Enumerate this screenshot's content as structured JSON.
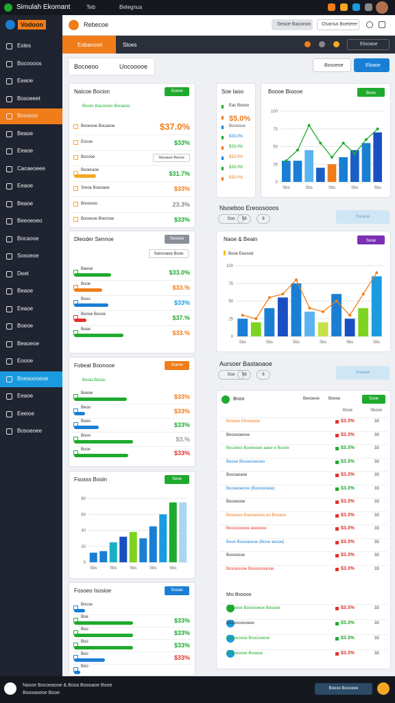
{
  "window": {
    "title": "Simulah Ekomant",
    "tabs": [
      "Teb",
      "Belegnus"
    ]
  },
  "brand": "Vodoon",
  "header": {
    "title": "Rebecoe",
    "search": "Sesoe Baconon",
    "search2": "Osansa Boeteee"
  },
  "sidebar": {
    "items": [
      "Estes",
      "Bocoooos",
      "Eeaoe",
      "Bosoeeet",
      "Brooeoo",
      "Beaoe",
      "Eeaoe",
      "Cacaeoeee",
      "Eeaoe",
      "Beaoe",
      "Beeoeoeo",
      "Bocaooe",
      "Sosoeoe",
      "Deet",
      "Beaoe",
      "Eeaoe",
      "Boeoe",
      "Beaoeoe",
      "Eoooe",
      "Boeaoooeoe",
      "Eeaoe",
      "Eeeioe",
      "Bosoeoee"
    ],
    "active_orange": 4,
    "active_blue": 19
  },
  "subnav": {
    "tabs": [
      "Eobanoon",
      "Stoes"
    ],
    "button": "Elooaoe"
  },
  "toolbar": {
    "tabs": [
      "Bocoeoo",
      "Uocooooe"
    ],
    "buttons": [
      "Bosoeoe",
      "Eloaoe"
    ]
  },
  "cards": [
    {
      "title": "Natcoe Bocion",
      "badge": {
        "text": "Soeoe",
        "color": "#1faa2e"
      },
      "subtitle": "Bocec Bacocoes Bocaoes",
      "rows": [
        {
          "label": "Booeooe Bocaeoe",
          "value": "$37.0%",
          "color": "#f07c1a"
        },
        {
          "label": "Eocoe",
          "value": "$33%",
          "color": "#1faa2e"
        },
        {
          "label": "Bocooe",
          "button": "Stooaoe Bocoe"
        },
        {
          "label": "Booeraoe",
          "value": "$31.7%",
          "color": "#1faa2e",
          "progress": 35,
          "pcolor": "#f5a623"
        },
        {
          "label": "Sreoe Boooaoe",
          "value": "$33%",
          "color": "#f07c1a"
        },
        {
          "label": "Boooooo",
          "value": "23.3%",
          "color": "#888888"
        },
        {
          "label": "Boooooe Boorooe",
          "value": "$33%",
          "color": "#1faa2e"
        }
      ]
    },
    {
      "title": "Dleoder Sennoe",
      "badge": {
        "text": "Sesoee",
        "color": "#8a8f99"
      },
      "button": "Sanooaoe Booe",
      "rows": [
        {
          "label": "Baeoe",
          "value": "$33.0%",
          "color": "#1faa2e",
          "progress": 60,
          "pcolor": "#1faa2e"
        },
        {
          "label": "Booe",
          "value": "$33.%",
          "color": "#f07c1a",
          "progress": 45,
          "pcolor": "#f07c1a"
        },
        {
          "label": "Bsoo",
          "value": "$33%",
          "color": "#1a9be0",
          "progress": 55,
          "pcolor": "#1a7fd4"
        },
        {
          "label": "Boooe Bosoe",
          "value": "$37.%",
          "color": "#1faa2e",
          "progress": 20,
          "pcolor": "#e0342a"
        },
        {
          "label": "Boee",
          "value": "$33.%",
          "color": "#f07c1a",
          "progress": 80,
          "pcolor": "#1faa2e"
        }
      ]
    },
    {
      "title": "Fobeat Boonooe",
      "badge": {
        "text": "Soeoe",
        "color": "#f07c1a"
      },
      "subtitle": "Booia Bocac",
      "rows": [
        {
          "label": "Boeoe",
          "value": "$33%",
          "color": "#f07c1a",
          "progress": 85,
          "pcolor": "#1faa2e"
        },
        {
          "label": "Beoo",
          "value": "$33%",
          "color": "#f07c1a",
          "progress": 18,
          "pcolor": "#1a7fd4"
        },
        {
          "label": "Boeo",
          "value": "$33%",
          "color": "#1faa2e",
          "progress": 40,
          "pcolor": "#1a7fd4"
        },
        {
          "label": "Booo",
          "value": "$3.%",
          "color": "#999999",
          "progress": 95,
          "pcolor": "#1faa2e"
        },
        {
          "label": "Booe",
          "value": "$33%",
          "color": "#e0342a",
          "progress": 88,
          "pcolor": "#1faa2e"
        }
      ]
    },
    {
      "title": "Fsosss Booin",
      "badge": {
        "text": "Seoe",
        "color": "#1faa2e"
      },
      "chart": 2
    },
    {
      "title": "Fosoeo Isosioe",
      "badge": {
        "text": "Sooae",
        "color": "#1a7fd4"
      },
      "rows": [
        {
          "label": "Bocoe",
          "progress": 18,
          "pcolor": "#1a7fd4"
        },
        {
          "label": "Boe",
          "value": "$33%",
          "color": "#1faa2e",
          "progress": 95,
          "pcolor": "#1faa2e"
        },
        {
          "label": "Boo",
          "value": "$33%",
          "color": "#1faa2e",
          "progress": 95,
          "pcolor": "#1faa2e"
        },
        {
          "label": "Boo",
          "value": "$33%",
          "color": "#1faa2e",
          "progress": 95,
          "pcolor": "#1faa2e"
        },
        {
          "label": "Boo",
          "value": "$33%",
          "color": "#e0342a",
          "progress": 50,
          "pcolor": "#1a7fd4"
        },
        {
          "label": "Boo",
          "progress": 10,
          "pcolor": "#1a7fd4"
        }
      ]
    }
  ],
  "mini": {
    "title": "Soe Iaoo",
    "items": [
      {
        "text": "Eac Bsooo",
        "color": "#333333"
      },
      {
        "text": "$5.0%",
        "color": "#f07c1a"
      },
      {
        "text": "Boooooo",
        "color": "#555555"
      },
      {
        "text": "$33.0%",
        "color": "#1a7fd4"
      },
      {
        "text": "$33.0%",
        "color": "#1faa2e"
      },
      {
        "text": "$33.0%",
        "color": "#f07c1a"
      },
      {
        "text": "$33.0%",
        "color": "#1faa2e"
      },
      {
        "text": "$33.0%",
        "color": "#f07c1a"
      }
    ]
  },
  "sections": [
    {
      "title": "Nsoeboo Ereoosooos",
      "chips": [
        "Soo",
        "S8",
        "8"
      ],
      "button": "Socaoe"
    },
    {
      "title": "Aursoer Bastaoaoe",
      "chips": [
        "Soo",
        "S8",
        "8"
      ],
      "button": "Sooaoe"
    }
  ],
  "chart_data": [
    {
      "type": "bar",
      "title": "Boooe Bioooe",
      "badge": "Booe",
      "badge_color": "#1faa2e",
      "categories": [
        "Sbs",
        null,
        "Sbs",
        null,
        "Sbs",
        null,
        "Sbs",
        null,
        "Sbs"
      ],
      "values": [
        30,
        30,
        45,
        20,
        25,
        35,
        45,
        55,
        70
      ],
      "colors": [
        "#1a7fd4",
        "#1a7fd4",
        "#5ab4f0",
        "#1a5fc4",
        "#f07c1a",
        "#1a7fd4",
        "#1a5fc4",
        "#1a7fd4",
        "#1a4fc4"
      ],
      "line": [
        30,
        45,
        80,
        55,
        35,
        55,
        40,
        60,
        75
      ],
      "line_color": "#1faa2e",
      "ylim": [
        0,
        100
      ],
      "yticks": [
        0,
        25,
        50,
        75,
        100
      ]
    },
    {
      "type": "bar",
      "title": "Naoe & Beain",
      "badge": "Sooe",
      "badge_color": "#7b2fb5",
      "legend": "Booe Eeoood",
      "categories": [
        "Sbs",
        null,
        "Sbs",
        null,
        "Sbs",
        null,
        "Sbs",
        null,
        "Sbs",
        null,
        "Sbs"
      ],
      "values": [
        25,
        20,
        40,
        55,
        75,
        35,
        20,
        60,
        25,
        40,
        85
      ],
      "colors": [
        "#1a7fd4",
        "#7ed321",
        "#1a7fd4",
        "#1a4fc4",
        "#1a7fd4",
        "#5ab4f0",
        "#c8e04a",
        "#1a7fd4",
        "#1a4fc4",
        "#7ed321",
        "#1a9be0"
      ],
      "line": [
        30,
        25,
        55,
        60,
        80,
        40,
        35,
        50,
        30,
        60,
        90
      ],
      "line_color": "#f07c1a",
      "ylim": [
        0,
        100
      ],
      "yticks": [
        0,
        25,
        50,
        75,
        100
      ]
    },
    {
      "type": "bar",
      "categories": [
        "Sbs",
        null,
        "Sbs",
        null,
        "Sbs",
        null,
        "Sbs",
        null,
        "Sbs",
        null
      ],
      "values": [
        12,
        14,
        25,
        32,
        38,
        30,
        45,
        60,
        75,
        75
      ],
      "colors": [
        "#1a7fd4",
        "#1a7fd4",
        "#1ab0c4",
        "#1a4fc4",
        "#7ed321",
        "#1a7fd4",
        "#1a7fd4",
        "#1a9be0",
        "#1faa2e",
        "#a8d8f0"
      ],
      "ylim": [
        0,
        80
      ],
      "yticks": [
        0,
        20,
        40,
        60,
        80
      ]
    }
  ],
  "table": {
    "title": "Bnoo",
    "tabs": [
      "Beooeoe",
      "Boeoe"
    ],
    "button": "Sooe",
    "columns": [
      "Booe",
      "Sbooo"
    ],
    "rows": [
      {
        "label": "Bosoeo Eboooaoe",
        "color": "#f07c1a",
        "value": "$3.3%",
        "vcolor": "#e0342a",
        "n": "33"
      },
      {
        "label": "Boooooeooe",
        "color": "#333333",
        "value": "$3.3%",
        "vcolor": "#e0342a",
        "n": "33"
      },
      {
        "label": "Bocoeoo Booeoooe aaoe e Boooe",
        "color": "#1faa2e",
        "value": "$3.3%",
        "vcolor": "#1faa2e",
        "n": "33"
      },
      {
        "label": "Boooe Booooooooeo",
        "color": "#1a7fd4",
        "value": "$3.3%",
        "vcolor": "#1faa2e",
        "n": "33"
      },
      {
        "label": "Bsooaoaoe",
        "color": "#333333",
        "value": "$3.3%",
        "vcolor": "#e0342a",
        "n": "33"
      },
      {
        "label": "Boooeoeooe (Boooooaoe)",
        "color": "#1a7fd4",
        "value": "$3.3%",
        "vcolor": "#1faa2e",
        "n": "33"
      },
      {
        "label": "Boooeooe",
        "color": "#333333",
        "value": "$3.3%",
        "vcolor": "#e0342a",
        "n": "33"
      },
      {
        "label": "Booooeo Boooooeoo eo Booaoe",
        "color": "#f07c1a",
        "value": "$3.3%",
        "vcolor": "#e0342a",
        "n": "33"
      },
      {
        "label": "Bocoooeooe aoooeoe",
        "color": "#e0342a",
        "value": "$3.3%",
        "vcolor": "#e0342a",
        "n": "33"
      },
      {
        "label": "Booe Boooaoeoe (Booe aoooe)",
        "color": "#1a7fd4",
        "value": "$3.3%",
        "vcolor": "#e0342a",
        "n": "33"
      },
      {
        "label": "Bsoooooe",
        "color": "#333333",
        "value": "$3.3%",
        "vcolor": "#e0342a",
        "n": "33"
      },
      {
        "label": "Bosoeoooe Booooooaooe",
        "color": "#e0342a",
        "value": "$3.3%",
        "vcolor": "#e0342a",
        "n": "33"
      }
    ],
    "group": "Msi Bsoooo",
    "group_rows": [
      {
        "label": "Bosoeoe Boooooeoe Booaoe",
        "color": "#1faa2e",
        "value": "$3.3%",
        "vcolor": "#e0342a",
        "n": "33"
      },
      {
        "label": "Booooooooeoe",
        "color": "#333333",
        "value": "$3.3%",
        "vcolor": "#1faa2e",
        "n": "33"
      },
      {
        "label": "Boooeoooe Boooooeoe",
        "color": "#1faa2e",
        "value": "$3.3%",
        "vcolor": "#1faa2e",
        "n": "33"
      },
      {
        "label": "Boooeoooe Booaoe",
        "color": "#1faa2e",
        "value": "$3.3%",
        "vcolor": "#e0342a",
        "n": "33"
      }
    ]
  },
  "footer": {
    "lines": [
      "Nasoe Bocoeaooe & Bosa Boooaoe Booe",
      "Boooaoeoe Booe"
    ],
    "button": "Boooo Bosoeee"
  }
}
